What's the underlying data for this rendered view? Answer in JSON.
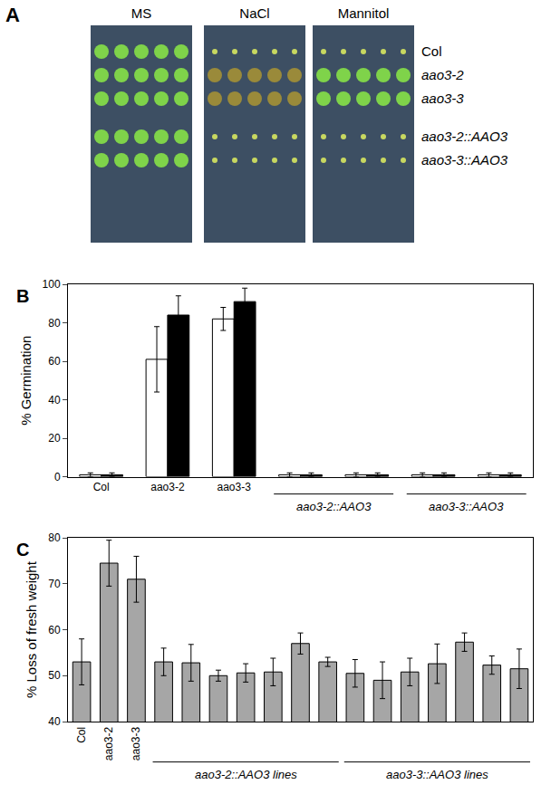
{
  "panel_a": {
    "label": "A",
    "columns": [
      "MS",
      "NaCl",
      "Mannitol"
    ],
    "rows": [
      "Col",
      "aao3-2",
      "aao3-3",
      "aao3-2::AAO3",
      "aao3-3::AAO3"
    ]
  },
  "chart_data": [
    {
      "type": "bar",
      "title": "B",
      "y_label": "% Germination",
      "categories": [
        "Col",
        "aao3-2",
        "aao3-3",
        null,
        null,
        null,
        null
      ],
      "groups": [
        null,
        null,
        null,
        "aao3-2::AAO3",
        "aao3-2::AAO3",
        "aao3-3::AAO3",
        "aao3-3::AAO3"
      ],
      "series": [
        {
          "color": "#ffffff",
          "values": [
            1,
            61,
            82,
            1,
            1,
            1,
            1
          ],
          "errors": [
            1,
            17,
            6,
            1,
            1,
            1,
            1
          ]
        },
        {
          "color": "#000000",
          "values": [
            1,
            84,
            91,
            1,
            1,
            1,
            1
          ],
          "errors": [
            1,
            10,
            7,
            1,
            1,
            1,
            1
          ]
        }
      ],
      "ylim": [
        0,
        100
      ],
      "yticks": [
        0,
        20,
        40,
        60,
        80,
        100
      ],
      "grid": false
    },
    {
      "type": "bar",
      "title": "C",
      "y_label": "% Loss of fresh weight",
      "categories": [
        "Col",
        "aao3-2",
        "aao3-3",
        null,
        null,
        null,
        null,
        null,
        null,
        null,
        null,
        null,
        null,
        null,
        null,
        null,
        null
      ],
      "groups": [
        null,
        null,
        null,
        "aao3-2::AAO3 lines",
        "aao3-2::AAO3 lines",
        "aao3-2::AAO3 lines",
        "aao3-2::AAO3 lines",
        "aao3-2::AAO3 lines",
        "aao3-2::AAO3 lines",
        "aao3-2::AAO3 lines",
        "aao3-3::AAO3 lines",
        "aao3-3::AAO3 lines",
        "aao3-3::AAO3 lines",
        "aao3-3::AAO3 lines",
        "aao3-3::AAO3 lines",
        "aao3-3::AAO3 lines",
        "aao3-3::AAO3 lines"
      ],
      "series": [
        {
          "color": "#a6a6a6",
          "values": [
            53,
            74.5,
            71,
            53,
            52.8,
            50,
            50.6,
            50.8,
            57,
            53,
            50.5,
            49,
            50.8,
            52.6,
            57.3,
            52.3,
            51.5
          ],
          "errors": [
            5,
            5,
            5,
            3,
            4,
            1.2,
            2,
            3,
            2.3,
            1,
            3,
            4,
            3,
            4.3,
            2,
            2,
            4.3
          ]
        }
      ],
      "ylim": [
        40,
        80
      ],
      "yticks": [
        40,
        50,
        60,
        70,
        80
      ],
      "grid": false
    }
  ]
}
